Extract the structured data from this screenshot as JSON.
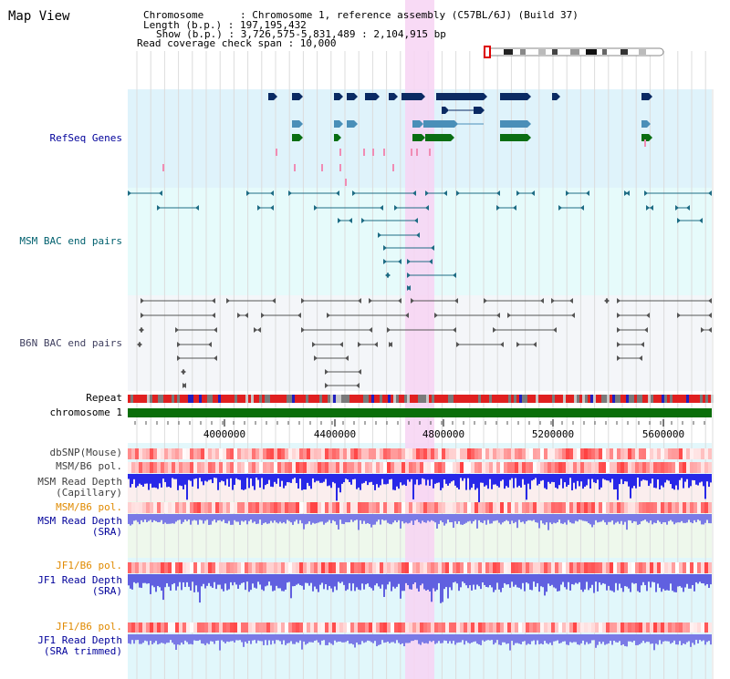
{
  "title": "Map View",
  "info": {
    "chromosome": "Chromosome      : Chromosome 1, reference assembly (C57BL/6J) (Build 37)",
    "length": "Length (b.p.) : 197,195,432",
    "show": "Show (b.p.) : 3,726,575-5,831,489 : 2,104,915 bp",
    "span": "Read coverage check span : 10,000"
  },
  "tracks": {
    "refseq": "RefSeq Genes",
    "msm_bac": "MSM BAC end pairs",
    "b6n_bac": "B6N BAC end pairs",
    "repeat": "Repeat",
    "chromosome": "chromosome 1",
    "dbsnp": "dbSNP(Mouse)",
    "msm_b6_pol_1": "MSM/B6 pol.",
    "msm_depth_cap_1": "MSM Read Depth",
    "msm_depth_cap_2": "(Capillary)",
    "msm_b6_pol_2": "MSM/B6 pol.",
    "msm_depth_sra_1": "MSM Read Depth",
    "msm_depth_sra_2": "(SRA)",
    "jf1_pol_1": "JF1/B6 pol.",
    "jf1_depth_1": "JF1 Read Depth",
    "jf1_depth_2": "(SRA)",
    "jf1_pol_2": "JF1/B6 pol.",
    "jf1_trim_1": "JF1 Read Depth",
    "jf1_trim_2": "(SRA trimmed)"
  },
  "axis": {
    "ticks": [
      "4000000",
      "4400000",
      "4800000",
      "5200000",
      "5600000"
    ]
  },
  "colors": {
    "refseq_bg": "#dff3fb",
    "msm_bg": "#e6fbfb",
    "b6n_bg": "#f4f6f9",
    "highlight": "#f7d3f3",
    "gene_dark": "#0a2a63",
    "gene_mid": "#4a8fb8",
    "gene_green": "#0a6e12",
    "chromosome_bar": "#0a6e0a",
    "label_blue": "#00009a",
    "label_orange": "#e08a00",
    "label_teal": "#00606e"
  }
}
